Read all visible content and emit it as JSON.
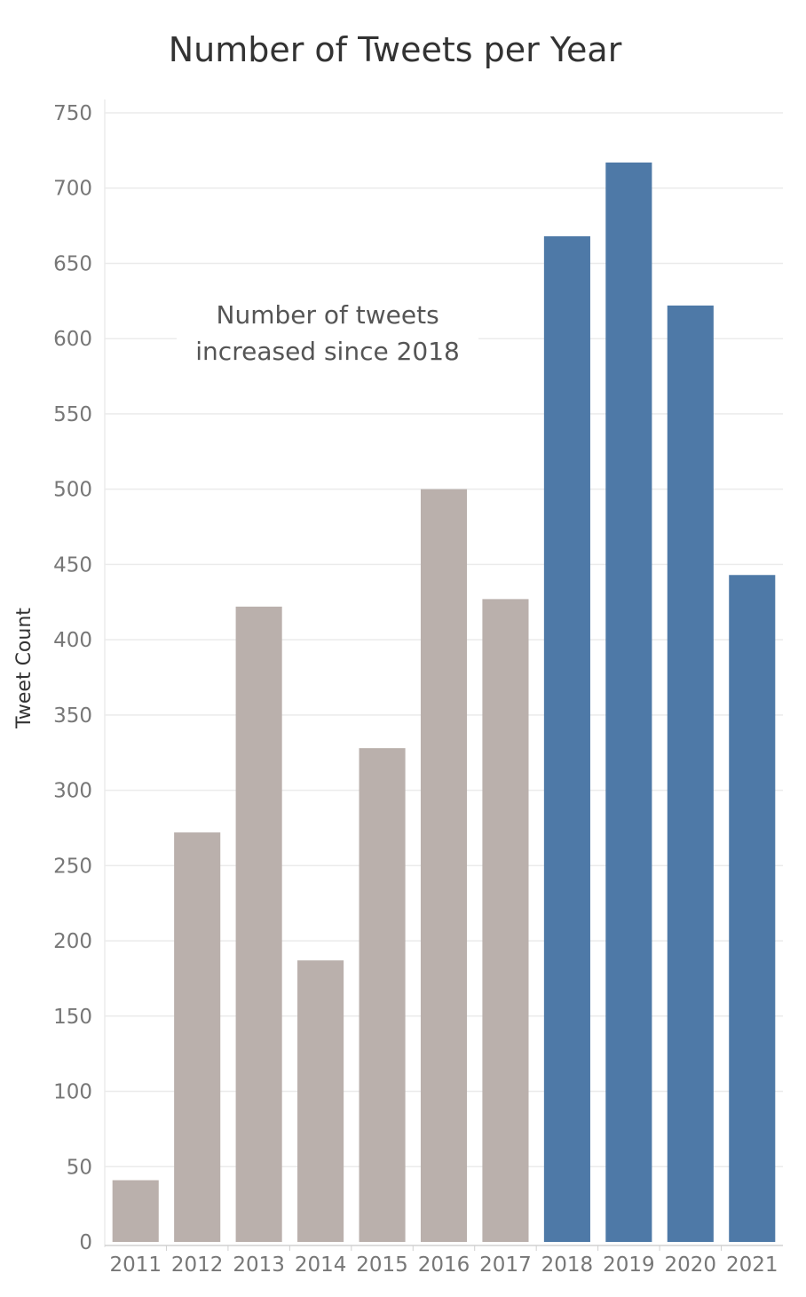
{
  "chart_data": {
    "type": "bar",
    "title": "Number of Tweets per Year",
    "xlabel": "",
    "ylabel": "Tweet Count",
    "categories": [
      "2011",
      "2012",
      "2013",
      "2014",
      "2015",
      "2016",
      "2017",
      "2018",
      "2019",
      "2020",
      "2021"
    ],
    "values": [
      41,
      272,
      422,
      187,
      328,
      500,
      427,
      668,
      717,
      622,
      443
    ],
    "ylim": [
      0,
      750
    ],
    "yticks": [
      0,
      50,
      100,
      150,
      200,
      250,
      300,
      350,
      400,
      450,
      500,
      550,
      600,
      650,
      700,
      750
    ],
    "grid": true,
    "highlight_from": "2018",
    "colors": {
      "default": "#BAB0AC",
      "highlight": "#4E79A7",
      "grid": "#EBEBEB",
      "axis": "#D0D0D0"
    },
    "annotation": {
      "lines": [
        "Number of tweets",
        "increased since 2018"
      ],
      "x": "2014",
      "y": 600
    }
  }
}
